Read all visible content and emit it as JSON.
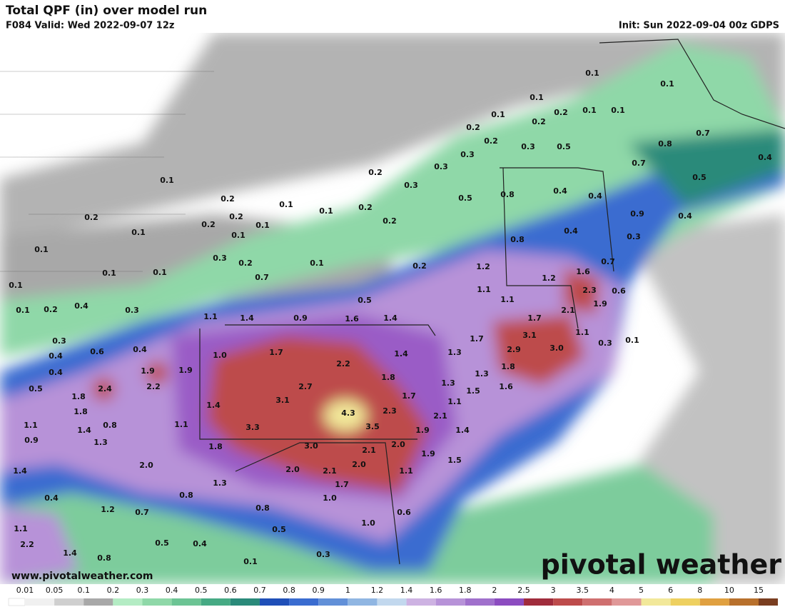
{
  "header": {
    "title": "Total QPF (in) over model run",
    "valid": "F084 Valid: Wed 2022-09-07 12z",
    "init": "Init: Sun 2022-09-04 00z GDPS"
  },
  "map": {
    "labels": [
      "0.1",
      "0.1",
      "0.1",
      "0.1",
      "0.2",
      "0.1",
      "0.1",
      "0.2",
      "0.2",
      "0.2",
      "0.3",
      "0.5",
      "0.7",
      "0.8",
      "0.4",
      "0.3",
      "0.3",
      "0.7",
      "0.2",
      "0.3",
      "0.5",
      "0.1",
      "0.2",
      "0.1",
      "0.1",
      "0.2",
      "0.5",
      "0.8",
      "0.4",
      "0.4",
      "0.2",
      "0.2",
      "0.2",
      "0.1",
      "0.2",
      "0.9",
      "0.4",
      "0.1",
      "0.1",
      "0.4",
      "0.8",
      "0.3",
      "0.1",
      "0.3",
      "0.2",
      "0.1",
      "0.1",
      "0.1",
      "0.7",
      "0.2",
      "1.2",
      "1.2",
      "1.6",
      "0.7",
      "0.1",
      "0.5",
      "1.1",
      "1.1",
      "2.3",
      "0.6",
      "0.1",
      "0.2",
      "0.4",
      "0.3",
      "1.1",
      "1.4",
      "0.9",
      "1.6",
      "1.4",
      "2.1",
      "1.9",
      "1.7",
      "1.1",
      "0.3",
      "0.6",
      "0.4",
      "1.7",
      "3.1",
      "0.3",
      "0.1",
      "0.4",
      "1.0",
      "1.7",
      "1.4",
      "1.3",
      "2.9",
      "3.0",
      "0.4",
      "1.9",
      "1.9",
      "2.2",
      "1.8",
      "1.3",
      "0.5",
      "2.4",
      "2.2",
      "2.7",
      "1.8",
      "1.3",
      "1.5",
      "1.6",
      "1.8",
      "3.1",
      "1.7",
      "1.1",
      "1.8",
      "1.4",
      "4.3",
      "2.3",
      "2.1",
      "1.1",
      "0.8",
      "1.4",
      "1.1",
      "3.3",
      "3.5",
      "1.9",
      "1.4",
      "0.9",
      "1.3",
      "1.8",
      "3.0",
      "2.0",
      "2.1",
      "1.9",
      "2.0",
      "1.5",
      "2.0",
      "2.1",
      "2.0",
      "1.1",
      "1.4",
      "1.7",
      "1.3",
      "0.4",
      "0.8",
      "1.0",
      "1.2",
      "0.7",
      "0.8",
      "0.6",
      "1.1",
      "1.0",
      "0.5",
      "2.2",
      "0.5",
      "0.4",
      "1.4",
      "0.8",
      "0.3",
      "0.1"
    ]
  },
  "legend": {
    "ticks": [
      0.01,
      0.05,
      0.1,
      0.2,
      0.3,
      0.4,
      0.5,
      0.6,
      0.7,
      0.8,
      0.9,
      1,
      1.2,
      1.4,
      1.6,
      1.8,
      2,
      2.5,
      3,
      3.5,
      4,
      5,
      6,
      8,
      10,
      15
    ],
    "colors": [
      "#f0f0f0",
      "#cfcfcf",
      "#a8a8a8",
      "#b4ecc4",
      "#8fd8a8",
      "#6cc494",
      "#46aa84",
      "#2a8a7a",
      "#1f4fb8",
      "#3a6cd0",
      "#6290d8",
      "#90b6e2",
      "#c2d8ee",
      "#cdb2e2",
      "#b792d8",
      "#a070cc",
      "#8c4cc0",
      "#a02c3c",
      "#bd4b4b",
      "#cf6f6f",
      "#e09898",
      "#f2e89a",
      "#eed060",
      "#e0a040",
      "#b8702c",
      "#7a3e20"
    ]
  },
  "footer": {
    "url": "www.pivotalweather.com",
    "brand": "pivotal weather"
  }
}
